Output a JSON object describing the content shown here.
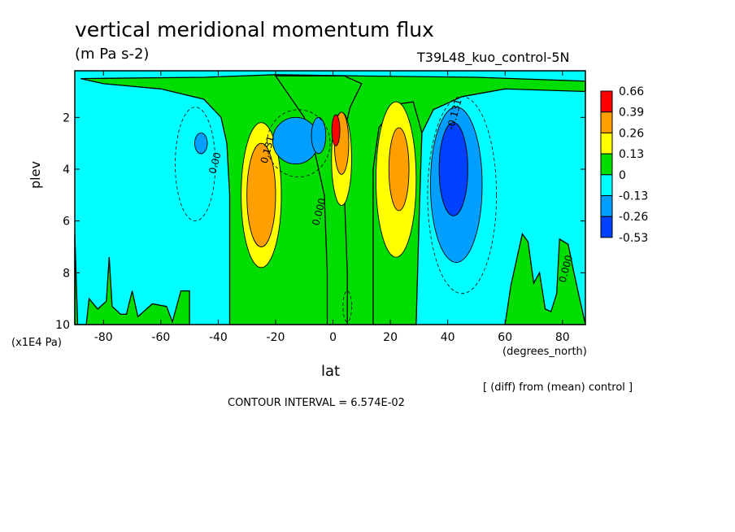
{
  "chart_data": {
    "type": "heatmap",
    "title": "vertical meridional momentum flux",
    "units": "(m Pa s-2)",
    "experiment": "T39L48_kuo_control-5N",
    "xlabel": "lat",
    "xunit": "(degrees_north)",
    "ylabel": "plev",
    "yunit": "(x1E4 Pa)",
    "xlim": [
      -90,
      88
    ],
    "ylim": [
      0.2,
      10
    ],
    "x_ticks": [
      "-80",
      "-60",
      "-40",
      "-20",
      "0",
      "20",
      "40",
      "60",
      "80"
    ],
    "x_tick_values": [
      -80,
      -60,
      -40,
      -20,
      0,
      20,
      40,
      60,
      80
    ],
    "y_ticks": [
      "2",
      "4",
      "6",
      "8",
      "10"
    ],
    "y_tick_values": [
      2,
      4,
      6,
      8,
      10
    ],
    "y_inverted": true,
    "legend_position": "right",
    "colorbar": {
      "labels": [
        "0.66",
        "0.39",
        "0.26",
        "0.13",
        "0",
        "-0.13",
        "-0.26",
        "-0.53"
      ],
      "colors": [
        "#ff0000",
        "#ff9f00",
        "#ffff00",
        "#00dd00",
        "#00ffff",
        "#009fff",
        "#0040ff"
      ]
    },
    "field_features": [
      {
        "lat": -25,
        "plev": 5.0,
        "value": 0.28
      },
      {
        "lat": -12,
        "plev": 2.9,
        "value": -0.16
      },
      {
        "lat": -45,
        "plev": 2.7,
        "value": -0.12
      },
      {
        "lat": 1,
        "plev": 2.5,
        "value": 0.66
      },
      {
        "lat": -5,
        "plev": 2.5,
        "value": -0.3
      },
      {
        "lat": 3,
        "plev": 4.0,
        "value": 0.3
      },
      {
        "lat": 24,
        "plev": 4.3,
        "value": 0.3
      },
      {
        "lat": 44,
        "plev": 4.8,
        "value": -0.42
      },
      {
        "lat": 5,
        "plev": 9.2,
        "value": -0.08
      }
    ],
    "contour_labels": [
      "0.00",
      "0.131",
      "-0.131",
      "0.000",
      "0.000"
    ],
    "annotation": "[ (diff) from (mean) control ]",
    "contour_interval": "CONTOUR INTERVAL = 6.574E-02"
  }
}
